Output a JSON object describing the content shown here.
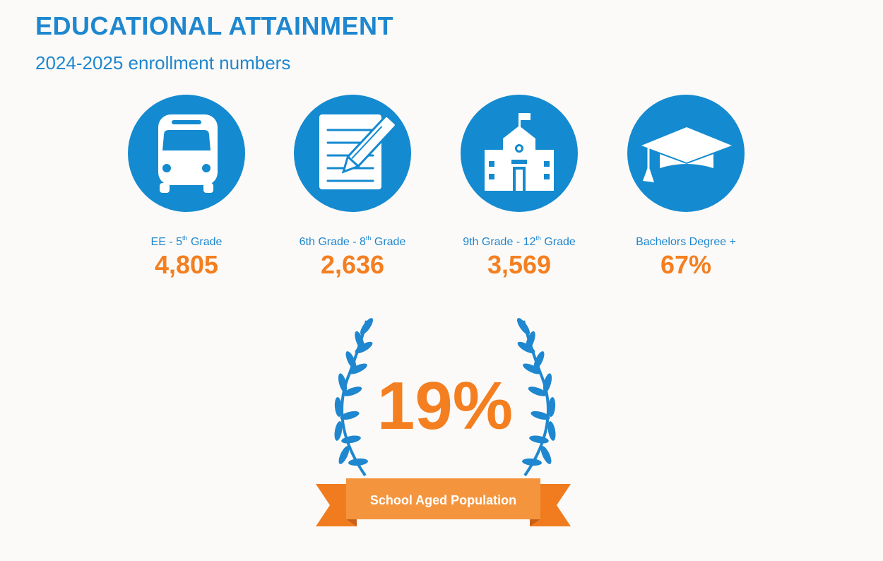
{
  "header": {
    "title": "EDUCATIONAL ATTAINMENT",
    "subtitle": "2024-2025 enrollment numbers"
  },
  "stats": [
    {
      "icon": "school-bus-icon",
      "label_pre": "EE - 5",
      "label_sup": "th",
      "label_post": " Grade",
      "value": "4,805"
    },
    {
      "icon": "notepad-pencil-icon",
      "label_pre": "6th Grade - 8",
      "label_sup": "th",
      "label_post": " Grade",
      "value": "2,636"
    },
    {
      "icon": "school-building-icon",
      "label_pre": "9th Grade - 12",
      "label_sup": "th",
      "label_post": " Grade",
      "value": "3,569"
    },
    {
      "icon": "graduation-cap-icon",
      "label_pre": "Bachelors Degree +",
      "label_sup": "",
      "label_post": "",
      "value": "67%"
    }
  ],
  "highlight": {
    "value": "19%",
    "ribbon_label": "School Aged Population"
  },
  "colors": {
    "primary_blue": "#148ad0",
    "accent_orange": "#f47f20",
    "background": "#fcfaf8"
  }
}
